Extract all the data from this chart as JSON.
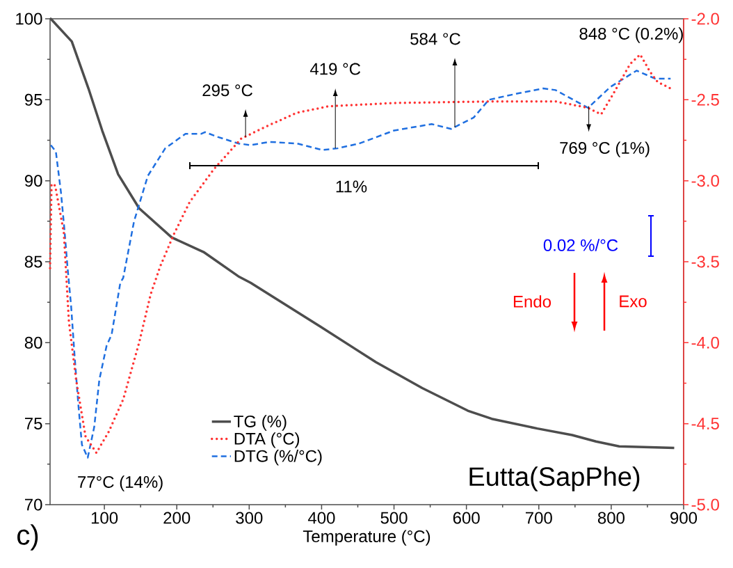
{
  "chart_data": {
    "type": "line",
    "xlabel": "Temperature (°C)",
    "xlim": [
      25,
      900
    ],
    "xticks": [
      100,
      200,
      300,
      400,
      500,
      600,
      700,
      800,
      900
    ],
    "ylim": [
      70,
      100
    ],
    "yticks": [
      70,
      75,
      80,
      85,
      90,
      95,
      100
    ],
    "y2lim": [
      -5,
      -2
    ],
    "y2ticks": [
      {
        "value": -5,
        "label": "-5.0"
      },
      {
        "value": -4.5,
        "label": "-4.5"
      },
      {
        "value": -4,
        "label": "-4.0"
      },
      {
        "value": -3.5,
        "label": "-3.5"
      },
      {
        "value": -3,
        "label": "-3.0"
      },
      {
        "value": -2.5,
        "label": "-2.5"
      },
      {
        "value": -2,
        "label": "-2.0"
      }
    ],
    "legend": "bottom left",
    "marker": "none",
    "series": [
      {
        "name": "TG (%)",
        "color": "#4d4d4d",
        "line_style": "solid",
        "x": [
          25,
          26,
          55,
          78,
          97,
          119,
          148,
          193,
          237,
          285,
          302,
          398,
          475,
          539,
          602,
          635,
          698,
          746,
          779,
          811,
          887
        ],
        "values": [
          100.0,
          100.0,
          98.6,
          95.7,
          93.1,
          90.4,
          88.3,
          86.5,
          85.6,
          84.1,
          83.7,
          81.0,
          78.8,
          77.2,
          75.8,
          75.3,
          74.7,
          74.3,
          73.9,
          73.6,
          73.5
        ]
      },
      {
        "name": "DTA (°C)",
        "color": "#ff3333",
        "line_style": "dotted",
        "axis": "y2",
        "x": [
          25,
          27,
          32,
          44,
          51,
          61,
          74,
          89,
          106,
          126,
          148,
          164,
          177,
          196,
          218,
          251,
          289,
          321,
          366,
          410,
          500,
          638,
          723,
          768,
          786,
          802,
          826,
          840,
          854,
          864,
          882
        ],
        "values": [
          -3.54,
          -3.02,
          -3.03,
          -3.32,
          -3.87,
          -4.23,
          -4.58,
          -4.68,
          -4.55,
          -4.35,
          -4.0,
          -3.7,
          -3.53,
          -3.33,
          -3.13,
          -2.93,
          -2.74,
          -2.67,
          -2.58,
          -2.54,
          -2.52,
          -2.51,
          -2.51,
          -2.55,
          -2.59,
          -2.47,
          -2.28,
          -2.22,
          -2.33,
          -2.39,
          -2.43
        ]
      },
      {
        "name": "DTG (%/°C)",
        "color": "#1f6fe0",
        "line_style": "dashed",
        "x": [
          26,
          33,
          40,
          45,
          49,
          54,
          59,
          64,
          69,
          77,
          86,
          93,
          103,
          110,
          122,
          126,
          141,
          160,
          184,
          212,
          234,
          239,
          257,
          285,
          302,
          328,
          366,
          401,
          422,
          452,
          500,
          552,
          579,
          610,
          631,
          672,
          706,
          723,
          768,
          799,
          835,
          861,
          882
        ],
        "values": [
          92.2,
          91.8,
          89.3,
          86.9,
          84.7,
          82.3,
          79.1,
          76.2,
          73.7,
          72.9,
          74.8,
          77.7,
          79.8,
          80.5,
          83.7,
          84.0,
          87.5,
          90.3,
          92.0,
          92.9,
          92.9,
          93.0,
          92.7,
          92.3,
          92.2,
          92.4,
          92.3,
          91.9,
          92.0,
          92.3,
          93.1,
          93.5,
          93.2,
          93.9,
          95.0,
          95.4,
          95.7,
          95.6,
          94.5,
          95.8,
          96.8,
          96.3,
          96.3
        ]
      }
    ],
    "annotations": [
      {
        "text": "295 °C",
        "x": 295,
        "y": 92.7
      },
      {
        "text": "419 °C",
        "x": 419,
        "y": 92.0
      },
      {
        "text": "584 °C",
        "x": 584,
        "y": 93.3
      },
      {
        "text": "848 °C (0.2%)",
        "x": 848,
        "y": 96.8
      },
      {
        "text": "769 °C (1%)",
        "x": 769,
        "y": 94.6
      },
      {
        "text": "77°C (14%)",
        "x": 77,
        "y": 72.9
      },
      "11%",
      "0.02 %/°C",
      "Endo",
      "Exo",
      "Eutta(SapPhe)",
      "c)"
    ]
  }
}
